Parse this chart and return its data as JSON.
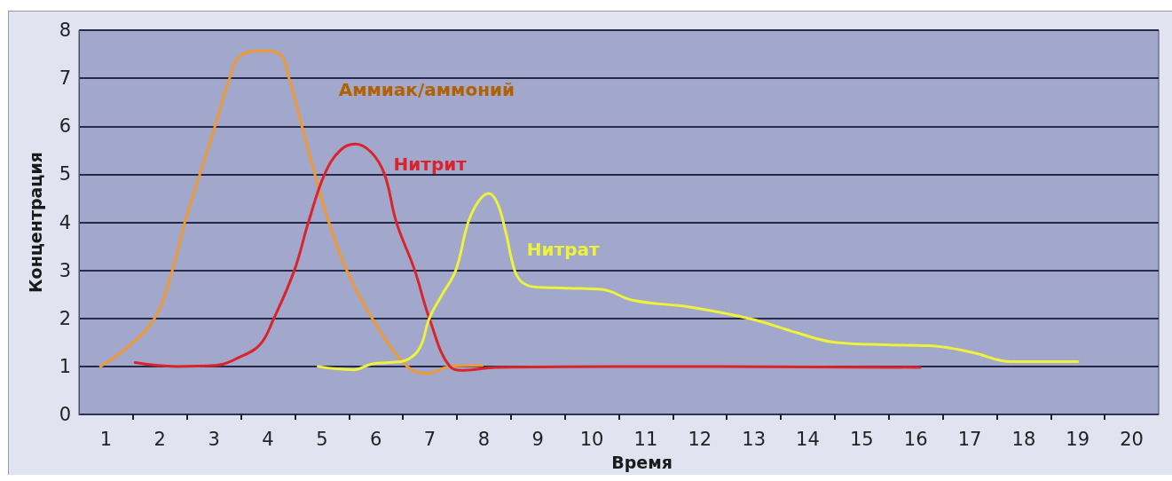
{
  "chart_data": {
    "type": "line",
    "xlabel": "Время",
    "ylabel": "Концентрация",
    "xlim": [
      0.5,
      20.5
    ],
    "xticks": [
      1,
      {
        "value": 1.5,
        "label": null
      },
      2,
      {
        "value": 2.5,
        "label": null
      },
      3,
      {
        "value": 3.5,
        "label": null
      },
      4,
      {
        "value": 4.5,
        "label": null
      },
      5,
      {
        "value": 5.5,
        "label": null
      },
      6,
      {
        "value": 6.5,
        "label": null
      },
      7,
      {
        "value": 7.5,
        "label": null
      },
      8,
      {
        "value": 8.5,
        "label": null
      },
      9,
      {
        "value": 9.5,
        "label": null
      },
      10,
      {
        "value": 10.5,
        "label": null
      },
      11,
      {
        "value": 11.5,
        "label": null
      },
      12,
      {
        "value": 12.5,
        "label": null
      },
      13,
      {
        "value": 13.5,
        "label": null
      },
      14,
      {
        "value": 14.5,
        "label": null
      },
      15,
      {
        "value": 15.5,
        "label": null
      },
      16,
      {
        "value": 16.5,
        "label": null
      },
      17,
      {
        "value": 17.5,
        "label": null
      },
      18,
      {
        "value": 18.5,
        "label": null
      },
      19,
      {
        "value": 19.5,
        "label": null
      },
      20
    ],
    "ylim": [
      0,
      8
    ],
    "yticks": [
      0,
      1,
      2,
      3,
      4,
      5,
      6,
      7,
      8
    ],
    "grid": "y",
    "marker": "none",
    "line_style": "solid",
    "series": [
      {
        "name": "Аммиак/аммоний",
        "color": "#ef9a35",
        "x": [
          0.9,
          1.4,
          1.9,
          2.23,
          2.46,
          2.74,
          3.02,
          3.29,
          3.47,
          3.88,
          4.22,
          4.39,
          4.63,
          4.87,
          5.13,
          5.46,
          5.93,
          6.58,
          6.95,
          7.37,
          7.97
        ],
        "values": [
          1.0,
          1.4,
          2.0,
          3.0,
          4.0,
          5.0,
          6.0,
          7.0,
          7.45,
          7.57,
          7.5,
          7.0,
          6.0,
          5.0,
          4.0,
          3.0,
          2.0,
          1.0,
          0.85,
          1.0,
          1.02
        ]
      },
      {
        "name": "Нитрит",
        "color": "#d9242c",
        "x": [
          1.54,
          2.3,
          3.04,
          3.45,
          3.85,
          4.11,
          4.49,
          4.75,
          5.05,
          5.34,
          5.62,
          5.92,
          6.16,
          6.38,
          6.72,
          6.99,
          7.37,
          7.64,
          8.22,
          10.5,
          16.08
        ],
        "values": [
          1.08,
          1.0,
          1.02,
          1.18,
          1.45,
          2.0,
          3.0,
          4.0,
          5.0,
          5.5,
          5.63,
          5.45,
          5.0,
          4.0,
          3.0,
          2.0,
          1.0,
          0.92,
          0.98,
          1.0,
          0.98
        ]
      },
      {
        "name": "Нитрат",
        "color": "#eef23a",
        "x": [
          4.93,
          5.26,
          5.59,
          5.92,
          6.25,
          6.58,
          6.82,
          6.99,
          7.23,
          7.48,
          7.71,
          7.91,
          8.09,
          8.25,
          8.4,
          8.57,
          8.71,
          8.96,
          9.54,
          10.2,
          10.75,
          11.84,
          12.97,
          13.8,
          14.5,
          15.45,
          16.26,
          16.8,
          17.12,
          17.76,
          19.0
        ],
        "values": [
          1.0,
          0.95,
          0.93,
          1.05,
          1.08,
          1.14,
          1.4,
          2.0,
          2.5,
          3.0,
          4.0,
          4.45,
          4.6,
          4.4,
          3.82,
          3.0,
          2.75,
          2.65,
          2.63,
          2.6,
          2.38,
          2.23,
          1.98,
          1.7,
          1.5,
          1.45,
          1.43,
          1.35,
          1.27,
          1.1,
          1.1
        ]
      }
    ]
  }
}
